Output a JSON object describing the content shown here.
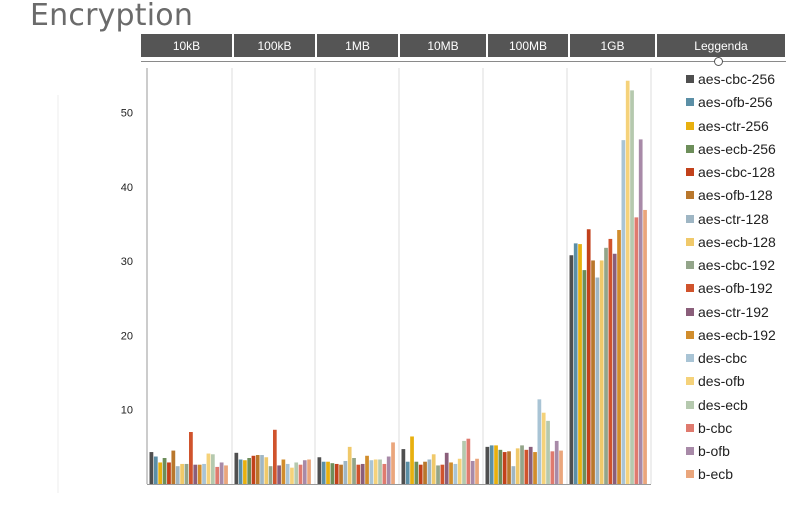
{
  "page_title": "Encryption",
  "header": {
    "legend_label": "Leggenda"
  },
  "chart_data": {
    "type": "bar",
    "title": "",
    "xlabel": "",
    "ylabel": "",
    "ylim": [
      0,
      56
    ],
    "yticks": [
      10,
      20,
      30,
      40,
      50
    ],
    "grid": false,
    "legend_position": "right",
    "categories": [
      "10kB",
      "100kB",
      "1MB",
      "10MB",
      "100MB",
      "1GB"
    ],
    "series": [
      {
        "name": "aes-cbc-256",
        "color": "#4f4f4f",
        "values": [
          4.3,
          4.2,
          3.6,
          4.7,
          5.0,
          30.8
        ]
      },
      {
        "name": "aes-ofb-256",
        "color": "#5b8fa6",
        "values": [
          3.7,
          3.3,
          3.0,
          3.0,
          5.2,
          32.4
        ]
      },
      {
        "name": "aes-ctr-256",
        "color": "#e8b00f",
        "values": [
          2.9,
          3.2,
          3.0,
          6.4,
          5.2,
          32.3
        ]
      },
      {
        "name": "aes-ecb-256",
        "color": "#6d8e5a",
        "values": [
          3.5,
          3.5,
          2.8,
          3.0,
          4.6,
          28.8
        ]
      },
      {
        "name": "aes-cbc-128",
        "color": "#c2411b",
        "values": [
          2.9,
          3.8,
          2.7,
          2.6,
          4.3,
          34.3
        ]
      },
      {
        "name": "aes-ofb-128",
        "color": "#b9772c",
        "values": [
          4.5,
          3.9,
          2.6,
          3.0,
          4.4,
          30.1
        ]
      },
      {
        "name": "aes-ctr-128",
        "color": "#9fb6c4",
        "values": [
          2.4,
          3.9,
          3.1,
          3.3,
          2.4,
          27.8
        ]
      },
      {
        "name": "aes-ecb-128",
        "color": "#f0c96a",
        "values": [
          2.7,
          3.6,
          5.0,
          4.0,
          4.8,
          30.1
        ]
      },
      {
        "name": "aes-cbc-192",
        "color": "#93a58a",
        "values": [
          2.7,
          2.4,
          3.5,
          2.5,
          5.2,
          31.8
        ]
      },
      {
        "name": "aes-ofb-192",
        "color": "#d0532c",
        "values": [
          7.0,
          7.3,
          2.6,
          2.6,
          4.6,
          33.0
        ]
      },
      {
        "name": "aes-ctr-192",
        "color": "#8a5e7a",
        "values": [
          2.6,
          2.5,
          2.7,
          4.2,
          5.0,
          31.0
        ]
      },
      {
        "name": "aes-ecb-192",
        "color": "#d18d2c",
        "values": [
          2.6,
          3.3,
          3.8,
          2.9,
          4.3,
          34.2
        ]
      },
      {
        "name": "des-cbc",
        "color": "#a9c4d5",
        "values": [
          2.7,
          2.7,
          3.2,
          2.7,
          11.4,
          46.3
        ]
      },
      {
        "name": "des-ofb",
        "color": "#f5d27a",
        "values": [
          4.1,
          2.2,
          3.3,
          3.4,
          9.6,
          54.3
        ]
      },
      {
        "name": "des-ecb",
        "color": "#b5c9ae",
        "values": [
          4.0,
          2.9,
          3.3,
          5.8,
          8.5,
          53.0
        ]
      },
      {
        "name": "b-cbc",
        "color": "#df7a6e",
        "values": [
          2.3,
          2.6,
          2.7,
          6.1,
          4.4,
          35.9
        ]
      },
      {
        "name": "b-ofb",
        "color": "#a88aa8",
        "values": [
          2.9,
          3.2,
          3.7,
          3.1,
          5.8,
          46.4
        ]
      },
      {
        "name": "b-ecb",
        "color": "#eaa67c",
        "values": [
          2.5,
          3.3,
          5.6,
          3.4,
          4.5,
          36.9
        ]
      }
    ]
  }
}
